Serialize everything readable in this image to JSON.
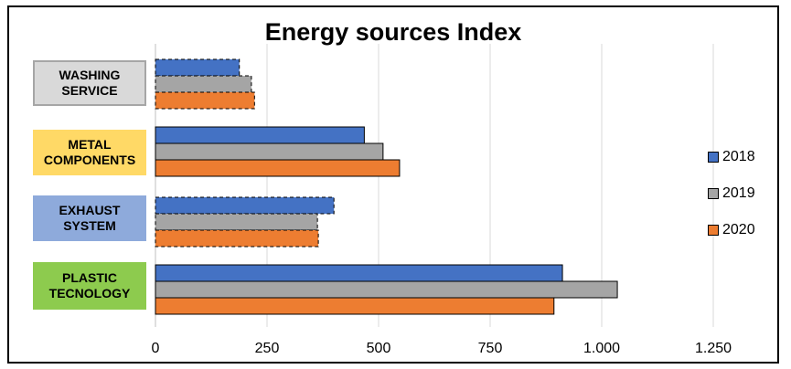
{
  "chart_data": {
    "type": "bar",
    "orientation": "horizontal",
    "title": "Energy sources Index",
    "categories": [
      "PLASTIC\nTECNOLOGY",
      "EXHAUST\nSYSTEM",
      "METAL\nCOMPONENTS",
      "WASHING\nSERVICE"
    ],
    "category_colors": [
      "#8dcb4e",
      "#8eaadb",
      "#ffd966",
      "#d9d9d9"
    ],
    "series": [
      {
        "name": "2018",
        "color": "#4472c4",
        "values": [
          912,
          400,
          468,
          188
        ]
      },
      {
        "name": "2019",
        "color": "#a5a5a5",
        "values": [
          1035,
          363,
          510,
          215
        ]
      },
      {
        "name": "2020",
        "color": "#ed7d31",
        "values": [
          893,
          365,
          547,
          222
        ]
      }
    ],
    "xlim": [
      0,
      1250
    ],
    "x_ticks": [
      0,
      250,
      500,
      750,
      1000,
      1250
    ],
    "x_tick_labels": [
      "0",
      "250",
      "500",
      "750",
      "1.000",
      "1.250"
    ],
    "dashed_categories": [
      "EXHAUST\nSYSTEM",
      "WASHING\nSERVICE"
    ],
    "grid": "vertical",
    "legend_position": "right",
    "xlabel": "",
    "ylabel": ""
  }
}
